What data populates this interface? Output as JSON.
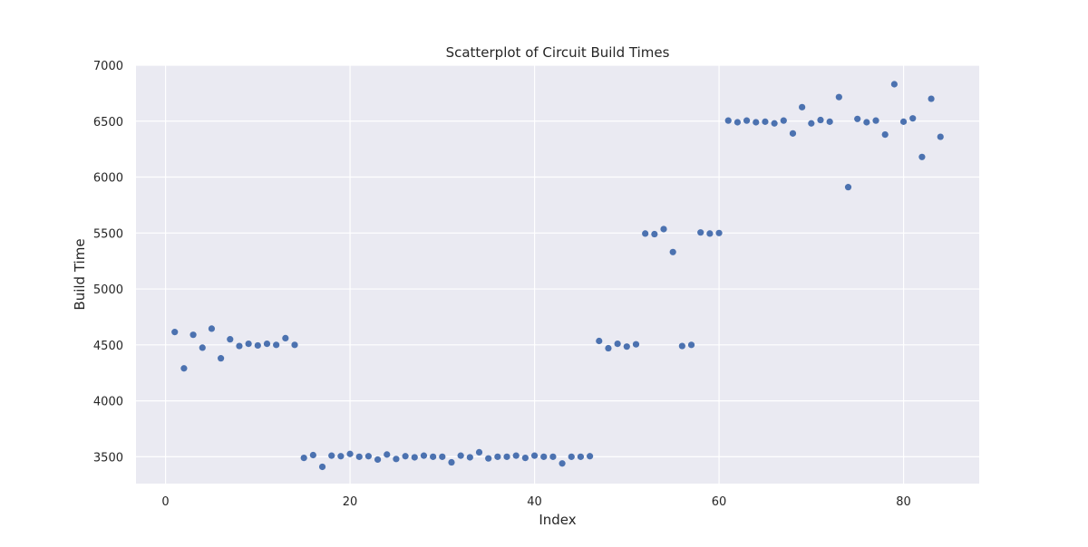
{
  "chart_data": {
    "type": "scatter",
    "title": "Scatterplot of Circuit Build Times",
    "xlabel": "Index",
    "ylabel": "Build Time",
    "xlim": [
      -3.2,
      88.2
    ],
    "ylim": [
      3260,
      7000
    ],
    "xticks": [
      0,
      20,
      40,
      60,
      80
    ],
    "yticks": [
      3500,
      4000,
      4500,
      5000,
      5500,
      6000,
      6500,
      7000
    ],
    "grid": true,
    "legend": "none",
    "colors": {
      "background": "#eaeaf2",
      "grid": "#ffffff",
      "point": "#4c72b0"
    },
    "x": [
      1,
      2,
      3,
      4,
      5,
      6,
      7,
      8,
      9,
      10,
      11,
      12,
      13,
      14,
      15,
      16,
      17,
      18,
      19,
      20,
      21,
      22,
      23,
      24,
      25,
      26,
      27,
      28,
      29,
      30,
      31,
      32,
      33,
      34,
      35,
      36,
      37,
      38,
      39,
      40,
      41,
      42,
      43,
      44,
      45,
      46,
      47,
      48,
      49,
      50,
      51,
      52,
      53,
      54,
      55,
      56,
      57,
      58,
      59,
      60,
      61,
      62,
      63,
      64,
      65,
      66,
      67,
      68,
      69,
      70,
      71,
      72,
      73,
      74,
      75,
      76,
      77,
      78,
      79,
      80,
      81,
      82,
      83,
      84
    ],
    "y": [
      4615,
      4290,
      4590,
      4475,
      4645,
      4380,
      4550,
      4490,
      4510,
      4495,
      4510,
      4500,
      4560,
      4500,
      3490,
      3515,
      3410,
      3510,
      3505,
      3525,
      3500,
      3505,
      3475,
      3520,
      3480,
      3505,
      3495,
      3510,
      3500,
      3500,
      3450,
      3510,
      3495,
      3540,
      3485,
      3500,
      3500,
      3510,
      3490,
      3510,
      3500,
      3500,
      3440,
      3500,
      3500,
      3505,
      4535,
      4470,
      4510,
      4485,
      4505,
      5495,
      5490,
      5535,
      5330,
      4490,
      4500,
      5505,
      5495,
      5500,
      6505,
      6490,
      6505,
      6490,
      6495,
      6480,
      6505,
      6390,
      6625,
      6480,
      6510,
      6495,
      6715,
      5910,
      6520,
      6490,
      6505,
      6380,
      6830,
      6495,
      6525,
      6180,
      6700,
      6360
    ]
  }
}
